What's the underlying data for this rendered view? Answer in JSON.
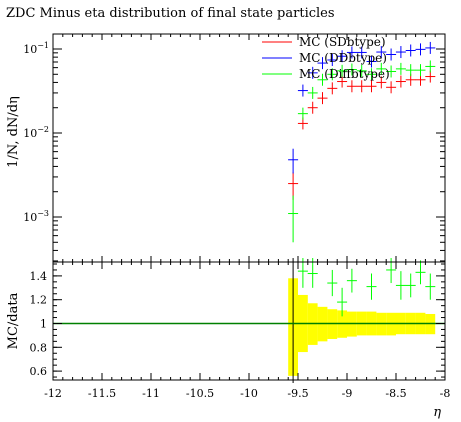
{
  "chart_data": [
    {
      "type": "scatter",
      "title": "ZDC Minus eta distribution of final state particles",
      "ylabel": "1/N, dN/dη",
      "xlabel": "",
      "xlim": [
        -12,
        -8
      ],
      "ylim": [
        0.0002,
        0.2
      ],
      "yscale": "log",
      "yticks": [
        {
          "value": 0.001,
          "base": "10",
          "exp": "−3"
        },
        {
          "value": 0.01,
          "base": "10",
          "exp": "−2"
        },
        {
          "value": 0.1,
          "base": "10",
          "exp": "−1"
        }
      ],
      "legend_position": "top-right",
      "series": [
        {
          "name": "MC (SDbtype)",
          "color": "#ff0000",
          "points": [
            {
              "x": -9.55,
              "y": 0.0025,
              "ylo": 0.0016,
              "yhi": 0.0034
            },
            {
              "x": -9.45,
              "y": 0.013
            },
            {
              "x": -9.35,
              "y": 0.02
            },
            {
              "x": -9.25,
              "y": 0.026
            },
            {
              "x": -9.15,
              "y": 0.034
            },
            {
              "x": -9.05,
              "y": 0.041
            },
            {
              "x": -8.95,
              "y": 0.036
            },
            {
              "x": -8.85,
              "y": 0.036
            },
            {
              "x": -8.75,
              "y": 0.036
            },
            {
              "x": -8.65,
              "y": 0.04
            },
            {
              "x": -8.55,
              "y": 0.035
            },
            {
              "x": -8.45,
              "y": 0.041
            },
            {
              "x": -8.35,
              "y": 0.043
            },
            {
              "x": -8.25,
              "y": 0.043
            },
            {
              "x": -8.15,
              "y": 0.047
            }
          ]
        },
        {
          "name": "MC (DDbtype)",
          "color": "#0000ff",
          "points": [
            {
              "x": -9.55,
              "y": 0.0048,
              "ylo": 0.0033,
              "yhi": 0.0065
            },
            {
              "x": -9.45,
              "y": 0.032
            },
            {
              "x": -9.35,
              "y": 0.052
            },
            {
              "x": -9.25,
              "y": 0.068
            },
            {
              "x": -9.15,
              "y": 0.074
            },
            {
              "x": -9.05,
              "y": 0.082
            },
            {
              "x": -8.95,
              "y": 0.091
            },
            {
              "x": -8.85,
              "y": 0.091
            },
            {
              "x": -8.75,
              "y": 0.071
            },
            {
              "x": -8.65,
              "y": 0.092
            },
            {
              "x": -8.55,
              "y": 0.086
            },
            {
              "x": -8.45,
              "y": 0.092
            },
            {
              "x": -8.35,
              "y": 0.096
            },
            {
              "x": -8.25,
              "y": 0.099
            },
            {
              "x": -8.15,
              "y": 0.103
            }
          ]
        },
        {
          "name": "MC (Diffbtype)",
          "color": "#00ff00",
          "points": [
            {
              "x": -9.55,
              "y": 0.0011,
              "ylo": 0.0005,
              "yhi": 0.0018
            },
            {
              "x": -9.45,
              "y": 0.017
            },
            {
              "x": -9.35,
              "y": 0.03
            },
            {
              "x": -9.25,
              "y": 0.043
            },
            {
              "x": -9.15,
              "y": 0.05
            },
            {
              "x": -9.05,
              "y": 0.055
            },
            {
              "x": -8.95,
              "y": 0.057
            },
            {
              "x": -8.85,
              "y": 0.055
            },
            {
              "x": -8.75,
              "y": 0.05
            },
            {
              "x": -8.65,
              "y": 0.058
            },
            {
              "x": -8.55,
              "y": 0.054
            },
            {
              "x": -8.45,
              "y": 0.058
            },
            {
              "x": -8.35,
              "y": 0.056
            },
            {
              "x": -8.25,
              "y": 0.056
            },
            {
              "x": -8.15,
              "y": 0.062
            }
          ]
        }
      ]
    },
    {
      "type": "scatter",
      "title": "",
      "ylabel": "MC/data",
      "xlabel": "η",
      "xlim": [
        -12,
        -8
      ],
      "ylim": [
        0.5,
        1.55
      ],
      "yticks": [
        "0.6",
        "0.8",
        "1",
        "1.2",
        "1.4"
      ],
      "xticks": [
        "-12",
        "-11.5",
        "-11",
        "-10.5",
        "-10",
        "-9.5",
        "-9",
        "-8.5",
        "-8"
      ],
      "reference_line": {
        "y": 1.0,
        "color": "#008000"
      },
      "uncertainty_band": {
        "color": "#ffff00",
        "bins": [
          {
            "x0": -9.6,
            "x1": -9.5,
            "lo": 0.56,
            "hi": 1.38
          },
          {
            "x0": -9.5,
            "x1": -9.4,
            "lo": 0.76,
            "hi": 1.24
          },
          {
            "x0": -9.4,
            "x1": -9.3,
            "lo": 0.82,
            "hi": 1.17
          },
          {
            "x0": -9.3,
            "x1": -9.2,
            "lo": 0.85,
            "hi": 1.14
          },
          {
            "x0": -9.2,
            "x1": -9.1,
            "lo": 0.87,
            "hi": 1.12
          },
          {
            "x0": -9.1,
            "x1": -9.0,
            "lo": 0.88,
            "hi": 1.11
          },
          {
            "x0": -9.0,
            "x1": -8.9,
            "lo": 0.89,
            "hi": 1.1
          },
          {
            "x0": -8.9,
            "x1": -8.8,
            "lo": 0.9,
            "hi": 1.1
          },
          {
            "x0": -8.8,
            "x1": -8.7,
            "lo": 0.9,
            "hi": 1.1
          },
          {
            "x0": -8.7,
            "x1": -8.6,
            "lo": 0.9,
            "hi": 1.09
          },
          {
            "x0": -8.6,
            "x1": -8.5,
            "lo": 0.9,
            "hi": 1.09
          },
          {
            "x0": -8.5,
            "x1": -8.4,
            "lo": 0.91,
            "hi": 1.09
          },
          {
            "x0": -8.4,
            "x1": -8.3,
            "lo": 0.91,
            "hi": 1.09
          },
          {
            "x0": -8.3,
            "x1": -8.2,
            "lo": 0.91,
            "hi": 1.09
          },
          {
            "x0": -8.2,
            "x1": -8.1,
            "lo": 0.91,
            "hi": 1.08
          }
        ]
      },
      "series": [
        {
          "name": "MC (Diffbtype)",
          "color": "#00ff00",
          "points": [
            {
              "x": -9.45,
              "y": 1.44,
              "ylo": 1.3,
              "yhi": 1.58
            },
            {
              "x": -9.35,
              "y": 1.42,
              "ylo": 1.3,
              "yhi": 1.55
            },
            {
              "x": -9.15,
              "y": 1.34,
              "ylo": 1.23,
              "yhi": 1.45
            },
            {
              "x": -9.05,
              "y": 1.18,
              "ylo": 1.06,
              "yhi": 1.3
            },
            {
              "x": -8.95,
              "y": 1.36,
              "ylo": 1.26,
              "yhi": 1.46
            },
            {
              "x": -8.75,
              "y": 1.31,
              "ylo": 1.2,
              "yhi": 1.42
            },
            {
              "x": -8.55,
              "y": 1.45,
              "ylo": 1.34,
              "yhi": 1.56
            },
            {
              "x": -8.45,
              "y": 1.32,
              "ylo": 1.2,
              "yhi": 1.44
            },
            {
              "x": -8.35,
              "y": 1.32,
              "ylo": 1.22,
              "yhi": 1.42
            },
            {
              "x": -8.25,
              "y": 1.43,
              "ylo": 1.33,
              "yhi": 1.53
            },
            {
              "x": -8.15,
              "y": 1.31,
              "ylo": 1.2,
              "yhi": 1.42
            }
          ]
        }
      ]
    }
  ]
}
